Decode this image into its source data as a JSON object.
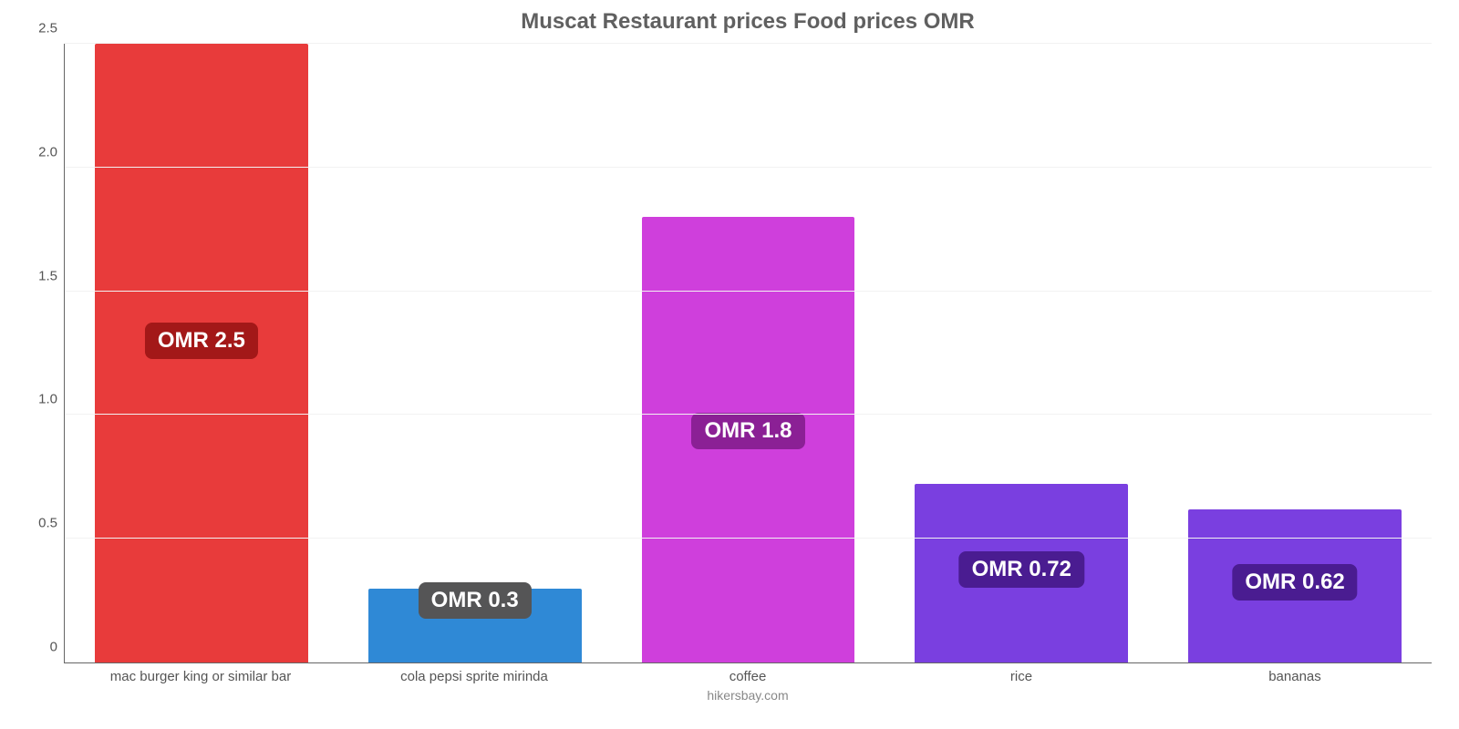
{
  "chart": {
    "type": "bar",
    "title": "Muscat Restaurant prices Food prices OMR",
    "title_color": "#606060",
    "title_fontsize": 24,
    "caption": "hikersbay.com",
    "caption_color": "#888888",
    "background_color": "#ffffff",
    "axis_color": "#666666",
    "grid_color": "#f2f2f2",
    "tick_label_color": "#555555",
    "tick_fontsize": 15,
    "badge_fontsize": 24,
    "bar_width_ratio": 0.78,
    "y": {
      "min": 0,
      "max": 2.5,
      "ticks": [
        0,
        0.5,
        1.0,
        1.5,
        2.0,
        2.5
      ],
      "tick_labels": [
        "0",
        "0.5",
        "1.0",
        "1.5",
        "2.0",
        "2.5"
      ]
    },
    "categories": [
      "mac burger king or similar bar",
      "cola pepsi sprite mirinda",
      "coffee",
      "rice",
      "bananas"
    ],
    "values": [
      2.5,
      0.3,
      1.8,
      0.72,
      0.62
    ],
    "value_labels": [
      "OMR 2.5",
      "OMR 0.3",
      "OMR 1.8",
      "OMR 0.72",
      "OMR 0.62"
    ],
    "bar_colors": [
      "#e83b3b",
      "#2f89d6",
      "#cf3fdc",
      "#7a3fe0",
      "#7a3fe0"
    ],
    "badge_bg_colors": [
      "#a31818",
      "#555556",
      "#8b2095",
      "#4a1c91",
      "#4a1c91"
    ],
    "badge_text_color": "#ffffff"
  }
}
